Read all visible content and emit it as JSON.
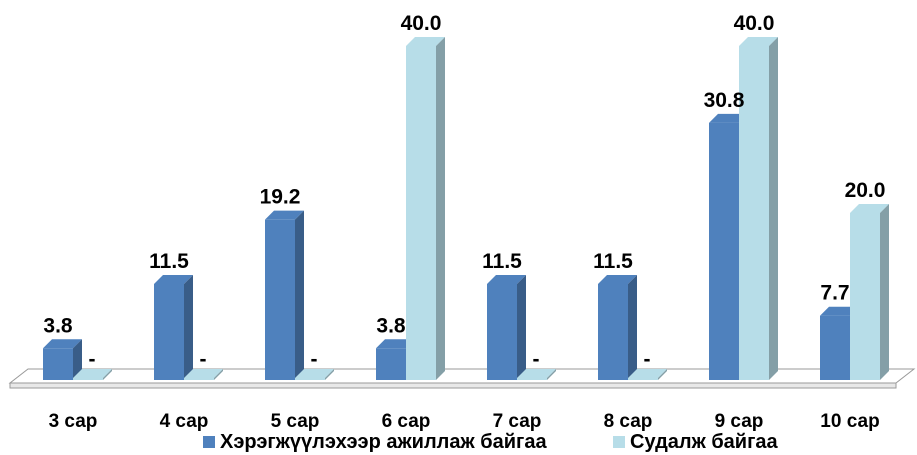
{
  "chart_data": {
    "type": "bar",
    "categories": [
      "3 сар",
      "4 сар",
      "5 сар",
      "6 сар",
      "7 сар",
      "8 сар",
      "9 сар",
      "10 сар"
    ],
    "series": [
      {
        "name": "Хэрэгжүүлэхээр ажиллаж байгаа",
        "values": [
          3.8,
          11.5,
          19.2,
          3.8,
          11.5,
          11.5,
          30.8,
          7.7
        ],
        "labels": [
          "3.8",
          "11.5",
          "19.2",
          "3.8",
          "11.5",
          "11.5",
          "30.8",
          "7.7"
        ],
        "color": "#4f81bd"
      },
      {
        "name": "Судалж байгаа",
        "values": [
          0,
          0,
          0,
          40.0,
          0,
          0,
          40.0,
          20.0
        ],
        "labels": [
          "-",
          "-",
          "-",
          "40.0",
          "-",
          "-",
          "40.0",
          "20.0"
        ],
        "color": "#b7dde8"
      }
    ],
    "ylim": [
      0,
      40
    ],
    "grid": false,
    "legend_position": "bottom",
    "style": "3d-column"
  }
}
